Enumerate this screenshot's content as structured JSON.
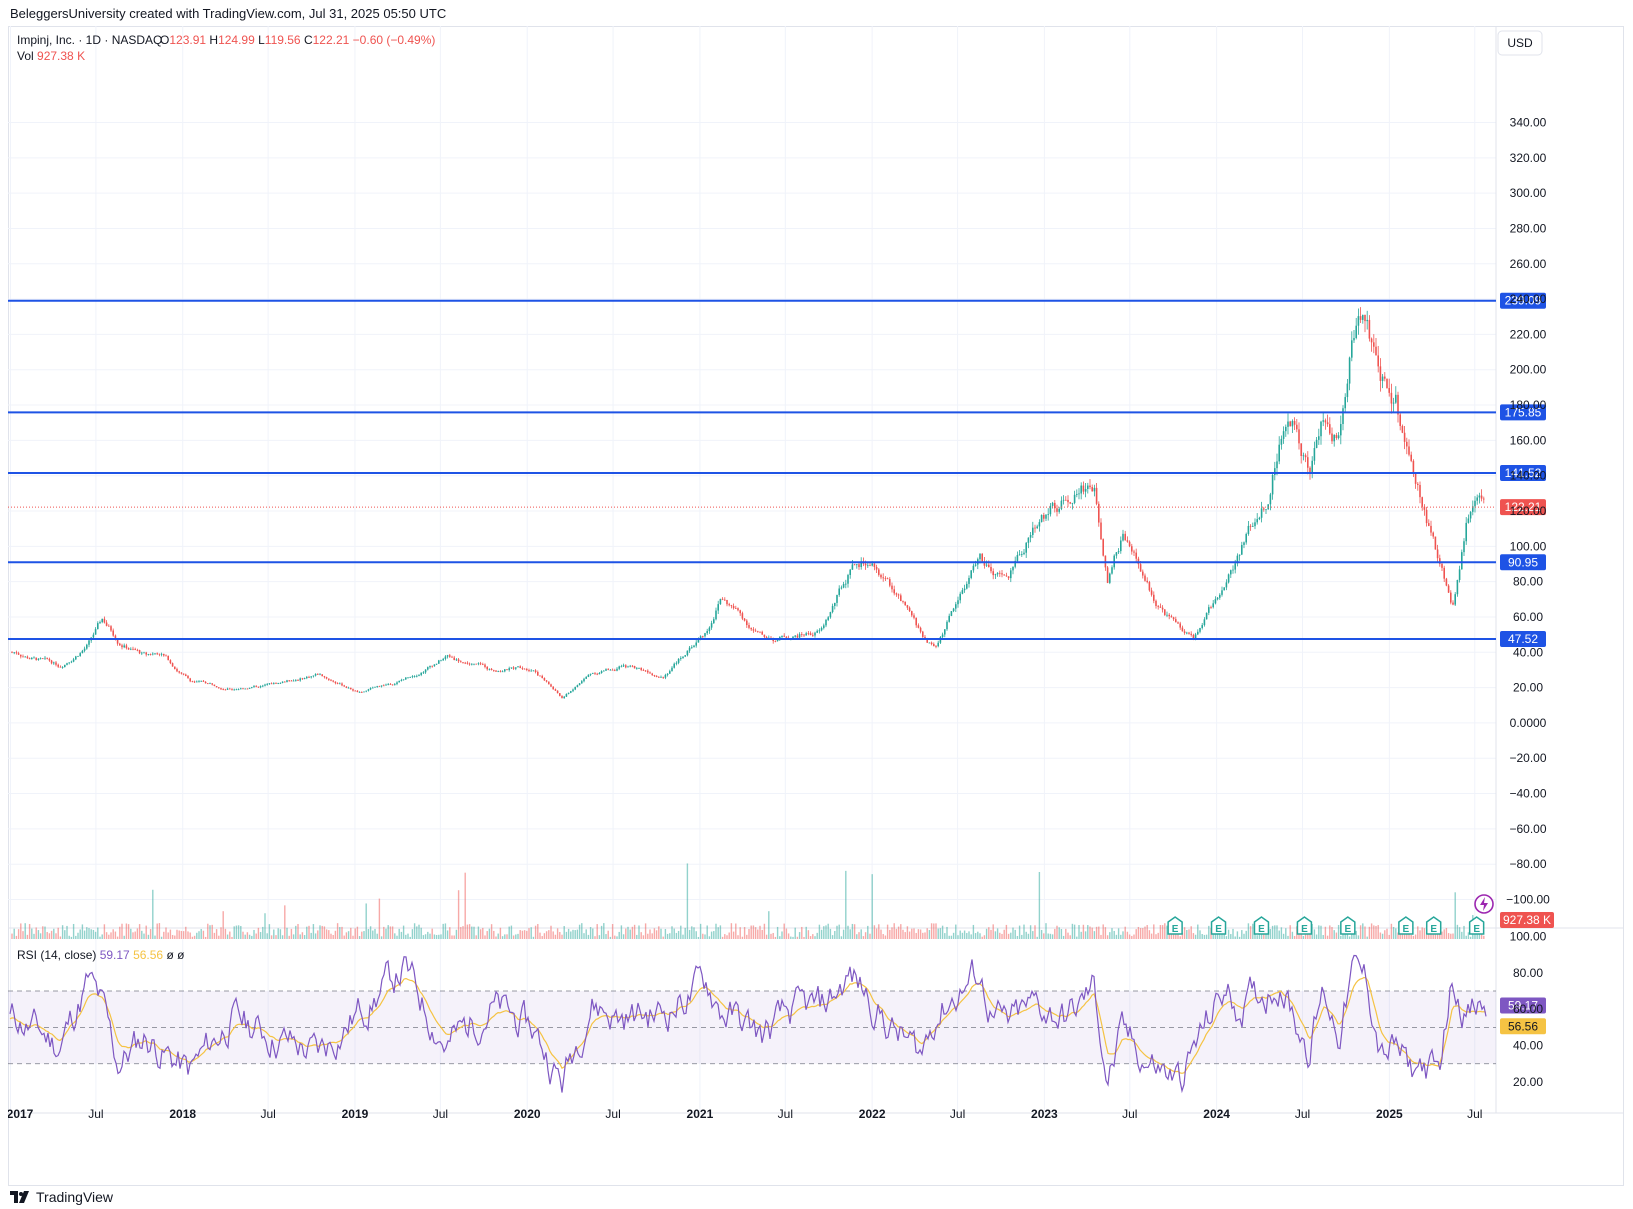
{
  "header": {
    "attribution": "BeleggersUniversity created with TradingView.com, Jul 31, 2025 05:50 UTC"
  },
  "legend": {
    "symbol": "Impinj, Inc. · 1D · NASDAQ",
    "o_label": "O",
    "o_value": "123.91",
    "h_label": "H",
    "h_value": "124.99",
    "l_label": "L",
    "l_value": "119.56",
    "c_label": "C",
    "c_value": "122.21",
    "change": "−0.60 (−0.49%)",
    "vol_label": "Vol",
    "vol_value": "927.38 K"
  },
  "currency": "USD",
  "rsi_legend": {
    "label": "RSI (14, close)",
    "rsi_value": "59.17",
    "ma_value": "56.56",
    "extra1": "ø",
    "extra2": "ø"
  },
  "footer": {
    "brand": "TradingView"
  },
  "colors": {
    "up": "#26a69a",
    "down": "#ef5350",
    "hline": "#1e53e5",
    "rsi": "#7e57c2",
    "rsi_ma": "#f5c343",
    "earnings": "#26a69a"
  },
  "chart_data": [
    {
      "type": "candlestick",
      "title": "Impinj, Inc. · 1D · NASDAQ",
      "xlabel": "",
      "ylabel": "",
      "x_ticks": [
        "2017",
        "Jul",
        "2018",
        "Jul",
        "2019",
        "Jul",
        "2020",
        "Jul",
        "2021",
        "Jul",
        "2022",
        "Jul",
        "2023",
        "Jul",
        "2024",
        "Jul",
        "2025",
        "Jul"
      ],
      "y_ticks": [
        "340.00",
        "320.00",
        "300.00",
        "280.00",
        "260.00",
        "240.00",
        "220.00",
        "200.00",
        "180.00",
        "160.00",
        "140.00",
        "120.00",
        "100.00",
        "80.00",
        "60.00",
        "40.00",
        "20.00",
        "0.0000",
        "−20.00",
        "−40.00",
        "−60.00",
        "−80.00",
        "−100.00"
      ],
      "ylim": [
        -115,
        372
      ],
      "grid": true,
      "series": [
        {
          "name": "Impinj",
          "x": [
            "2017-01",
            "2017-04",
            "2017-06",
            "2017-07",
            "2017-08",
            "2017-10",
            "2017-11",
            "2018-01",
            "2018-04",
            "2018-07",
            "2018-10",
            "2019-01",
            "2019-04",
            "2019-07",
            "2019-10",
            "2020-01",
            "2020-03",
            "2020-05",
            "2020-07",
            "2020-10",
            "2021-01",
            "2021-02",
            "2021-05",
            "2021-07",
            "2021-09",
            "2021-11",
            "2021-12",
            "2022-02",
            "2022-04",
            "2022-05",
            "2022-08",
            "2022-09",
            "2022-10",
            "2022-12",
            "2023-02",
            "2023-03",
            "2023-04",
            "2023-05",
            "2023-06",
            "2023-08",
            "2023-10",
            "2023-11",
            "2024-01",
            "2024-02",
            "2024-03",
            "2024-04",
            "2024-05",
            "2024-06",
            "2024-07",
            "2024-08",
            "2024-09",
            "2024-10",
            "2024-11",
            "2024-12",
            "2025-01",
            "2025-02",
            "2025-03",
            "2025-04",
            "2025-05",
            "2025-06",
            "2025-07"
          ],
          "close": [
            40,
            32,
            45,
            58,
            48,
            38,
            40,
            24,
            20,
            22,
            28,
            17,
            25,
            38,
            30,
            32,
            14,
            28,
            32,
            28,
            52,
            72,
            48,
            50,
            52,
            85,
            90,
            75,
            48,
            42,
            95,
            82,
            78,
            115,
            128,
            136,
            138,
            88,
            108,
            72,
            52,
            48,
            78,
            95,
            112,
            128,
            165,
            170,
            148,
            175,
            160,
            225,
            238,
            200,
            188,
            140,
            118,
            92,
            65,
            115,
            122
          ]
        }
      ],
      "volume_axis": {
        "max_k": 7000
      },
      "levels": [
        "239.09",
        "175.85",
        "141.52",
        "90.95",
        "47.52"
      ],
      "level_values": [
        239.09,
        175.85,
        141.52,
        90.95,
        47.52
      ],
      "last_price": "122.21",
      "last_price_value": 122.21,
      "last_volume": "927.38 K",
      "earnings_markers": [
        "E",
        "E",
        "E",
        "E",
        "E",
        "E",
        "E",
        "E"
      ],
      "earnings_dates": [
        "2023-10",
        "2024-01",
        "2024-04",
        "2024-07",
        "2024-10",
        "2025-02",
        "2025-04",
        "2025-07"
      ]
    },
    {
      "type": "line",
      "title": "RSI (14, close)",
      "y_ticks": [
        "100.00",
        "80.00",
        "60.00",
        "40.00",
        "20.00"
      ],
      "ylim": [
        4,
        103
      ],
      "band": [
        30,
        70
      ],
      "series": [
        {
          "name": "RSI",
          "values": [
            55,
            40,
            75,
            60,
            30,
            45,
            38,
            25,
            55,
            45,
            35,
            60,
            82,
            40,
            62,
            48,
            20,
            65,
            55,
            58,
            75,
            60,
            45,
            58,
            60,
            78,
            70,
            48,
            35,
            58,
            80,
            55,
            50,
            62,
            55,
            60,
            72,
            22,
            45,
            30,
            20,
            38,
            70,
            62,
            65,
            70,
            78,
            55,
            40,
            70,
            48,
            80,
            75,
            35,
            38,
            25,
            30,
            22,
            78,
            58,
            59.17
          ]
        },
        {
          "name": "MA",
          "values": [
            52,
            45,
            68,
            62,
            38,
            44,
            40,
            30,
            50,
            46,
            38,
            55,
            75,
            48,
            58,
            50,
            28,
            58,
            56,
            57,
            70,
            63,
            50,
            55,
            58,
            74,
            72,
            52,
            40,
            54,
            75,
            60,
            52,
            60,
            56,
            58,
            68,
            30,
            42,
            33,
            24,
            35,
            64,
            63,
            64,
            68,
            75,
            60,
            45,
            65,
            52,
            76,
            76,
            42,
            38,
            28,
            30,
            26,
            70,
            60,
            56.56
          ]
        }
      ],
      "rsi_label": "59.17",
      "ma_label": "56.56"
    }
  ]
}
